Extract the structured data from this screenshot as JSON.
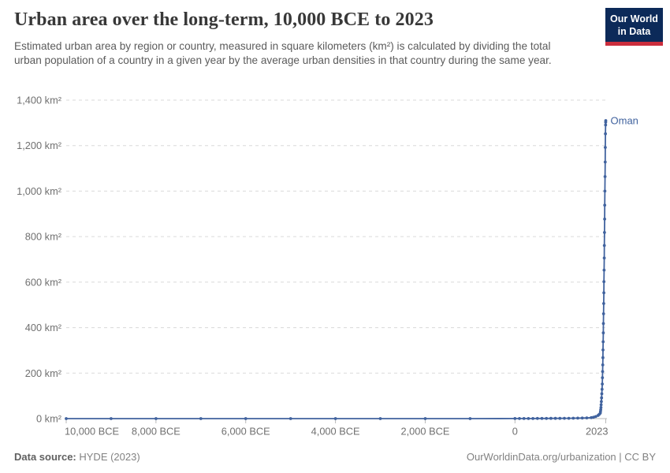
{
  "header": {
    "title": "Urban area over the long-term, 10,000 BCE to 2023",
    "subtitle": "Estimated urban area by region or country, measured in square kilometers (km²) is calculated by dividing the total urban population of a country in a given year by the average urban densities in that country during the same year.",
    "logo": {
      "line1": "Our World",
      "line2": "in Data"
    }
  },
  "footer": {
    "source_label": "Data source:",
    "source_value": "HYDE (2023)",
    "credit": "OurWorldinData.org/urbanization | CC BY"
  },
  "colors": {
    "line": "#40629e",
    "entity_label": "#40629e",
    "grid": "#dadada",
    "axis": "#b9b9b9",
    "tick_text": "#707070",
    "logo_navy": "#0c2a59",
    "logo_red": "#cb2e3d"
  },
  "chart_data": {
    "type": "line",
    "title": "Urban area over the long-term, 10,000 BCE to 2023",
    "xlabel": "",
    "ylabel": "km²",
    "xlim": [
      -10000,
      2023
    ],
    "ylim": [
      0,
      1400
    ],
    "grid": "dashed-horizontal",
    "legend_position": "end-of-line-label",
    "x_ticks": [
      {
        "value": -10000,
        "label": "10,000 BCE"
      },
      {
        "value": -8000,
        "label": "8,000 BCE"
      },
      {
        "value": -6000,
        "label": "6,000 BCE"
      },
      {
        "value": -4000,
        "label": "4,000 BCE"
      },
      {
        "value": -2000,
        "label": "2,000 BCE"
      },
      {
        "value": 0,
        "label": "0"
      },
      {
        "value": 2023,
        "label": "2023"
      }
    ],
    "y_ticks": [
      {
        "value": 0,
        "label": "0 km²"
      },
      {
        "value": 200,
        "label": "200 km²"
      },
      {
        "value": 400,
        "label": "400 km²"
      },
      {
        "value": 600,
        "label": "600 km²"
      },
      {
        "value": 800,
        "label": "800 km²"
      },
      {
        "value": 1000,
        "label": "1,000 km²"
      },
      {
        "value": 1200,
        "label": "1,200 km²"
      },
      {
        "value": 1400,
        "label": "1,400 km²"
      }
    ],
    "series": [
      {
        "name": "Oman",
        "unit": "km²",
        "final_value": 1310,
        "final_year": 2023,
        "points": [
          [
            -10000,
            0
          ],
          [
            -9000,
            0
          ],
          [
            -8000,
            0
          ],
          [
            -7000,
            0
          ],
          [
            -6000,
            0
          ],
          [
            -5000,
            0
          ],
          [
            -4000,
            0
          ],
          [
            -3000,
            0
          ],
          [
            -2000,
            0
          ],
          [
            -1000,
            0
          ],
          [
            0,
            0.3
          ],
          [
            100,
            0.4
          ],
          [
            200,
            0.4
          ],
          [
            300,
            0.5
          ],
          [
            400,
            0.5
          ],
          [
            500,
            0.6
          ],
          [
            600,
            0.7
          ],
          [
            700,
            0.8
          ],
          [
            800,
            0.9
          ],
          [
            900,
            1
          ],
          [
            1000,
            1.1
          ],
          [
            1100,
            1.3
          ],
          [
            1200,
            1.5
          ],
          [
            1300,
            1.7
          ],
          [
            1400,
            2
          ],
          [
            1500,
            2.4
          ],
          [
            1600,
            3
          ],
          [
            1700,
            4
          ],
          [
            1750,
            6
          ],
          [
            1800,
            9
          ],
          [
            1850,
            14
          ],
          [
            1875,
            18
          ],
          [
            1900,
            24
          ],
          [
            1905,
            31
          ],
          [
            1910,
            39
          ],
          [
            1915,
            49
          ],
          [
            1920,
            61
          ],
          [
            1925,
            75
          ],
          [
            1930,
            91
          ],
          [
            1935,
            109
          ],
          [
            1940,
            129
          ],
          [
            1945,
            152
          ],
          [
            1950,
            180
          ],
          [
            1953,
            207
          ],
          [
            1956,
            236
          ],
          [
            1959,
            268
          ],
          [
            1962,
            302
          ],
          [
            1965,
            338
          ],
          [
            1968,
            377
          ],
          [
            1971,
            418
          ],
          [
            1974,
            461
          ],
          [
            1977,
            506
          ],
          [
            1980,
            553
          ],
          [
            1983,
            602
          ],
          [
            1986,
            653
          ],
          [
            1989,
            706
          ],
          [
            1992,
            761
          ],
          [
            1995,
            818
          ],
          [
            1998,
            877
          ],
          [
            2001,
            938
          ],
          [
            2004,
            1000
          ],
          [
            2007,
            1064
          ],
          [
            2010,
            1128
          ],
          [
            2013,
            1192
          ],
          [
            2016,
            1252
          ],
          [
            2019,
            1291
          ],
          [
            2021,
            1303
          ],
          [
            2023,
            1310
          ]
        ]
      }
    ]
  }
}
